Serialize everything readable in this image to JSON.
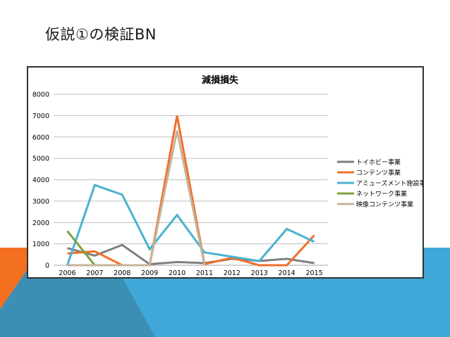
{
  "slide": {
    "title": "仮説①の検証BN"
  },
  "colors": {
    "slide_bg": "#ffffff",
    "deco_orange": "#f37021",
    "deco_blue_light": "#40a8d8",
    "deco_blue_dark": "#3b8fb5"
  },
  "chart_data": {
    "type": "line",
    "title": "減損損失",
    "xlabel": "",
    "ylabel": "",
    "x": [
      "2006",
      "2007",
      "2008",
      "2009",
      "2010",
      "2011",
      "2012",
      "2013",
      "2014",
      "2015"
    ],
    "ylim": [
      0,
      8000
    ],
    "yticks": [
      0,
      1000,
      2000,
      3000,
      4000,
      5000,
      6000,
      7000,
      8000
    ],
    "grid": true,
    "legend_position": "right",
    "series": [
      {
        "name": "トイホビー事業",
        "color": "#7f7f7f",
        "values": [
          800,
          450,
          950,
          50,
          150,
          100,
          300,
          200,
          300,
          100
        ]
      },
      {
        "name": "コンテンツ事業",
        "color": "#f07028",
        "values": [
          550,
          650,
          0,
          0,
          7000,
          50,
          350,
          0,
          0,
          1400
        ]
      },
      {
        "name": "アミューズメント施設事業",
        "color": "#4ab3d0",
        "values": [
          0,
          3750,
          3300,
          750,
          2350,
          600,
          400,
          200,
          1700,
          1100
        ]
      },
      {
        "name": "ネットワーク事業",
        "color": "#7aa33e",
        "values": [
          1600,
          0,
          null,
          null,
          null,
          null,
          null,
          null,
          null,
          null
        ]
      },
      {
        "name": "映像コンテンツ事業",
        "color": "#c4b49a",
        "values": [
          0,
          0,
          0,
          0,
          6300,
          0,
          null,
          null,
          null,
          null
        ]
      }
    ]
  }
}
